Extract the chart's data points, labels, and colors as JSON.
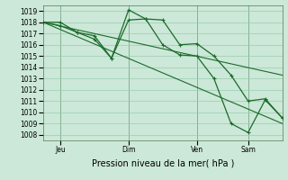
{
  "xlabel": "Pression niveau de la mer( hPa )",
  "bg_color": "#cce8d8",
  "plot_bg_color": "#cce8d8",
  "grid_color": "#99ccb0",
  "line_color": "#1a6b2a",
  "vline_color": "#557755",
  "ylim": [
    1007.5,
    1019.5
  ],
  "yticks": [
    1008,
    1009,
    1010,
    1011,
    1012,
    1013,
    1014,
    1015,
    1016,
    1017,
    1018,
    1019
  ],
  "xtick_labels": [
    "Jeu",
    "Dim",
    "Ven",
    "Sam"
  ],
  "xtick_positions": [
    6,
    30,
    54,
    72
  ],
  "x_vlines": [
    6,
    30,
    54,
    72
  ],
  "xlim": [
    0,
    84
  ],
  "series1_x": [
    0,
    6,
    12,
    18,
    24,
    30,
    36,
    42,
    48,
    54,
    60,
    66,
    72,
    78,
    84
  ],
  "series1_y": [
    1018.0,
    1018.0,
    1017.1,
    1016.8,
    1014.8,
    1019.1,
    1018.3,
    1018.2,
    1016.0,
    1016.1,
    1015.0,
    1013.3,
    1011.0,
    1011.2,
    1009.5
  ],
  "series2_x": [
    0,
    6,
    12,
    18,
    24,
    30,
    36,
    42,
    48,
    54,
    60,
    66,
    72,
    78,
    84
  ],
  "series2_y": [
    1018.0,
    1017.7,
    1017.1,
    1016.5,
    1014.8,
    1018.2,
    1018.3,
    1016.0,
    1015.1,
    1015.0,
    1013.0,
    1009.0,
    1008.2,
    1011.1,
    1009.5
  ],
  "trend1_x": [
    0,
    84
  ],
  "trend1_y": [
    1018.0,
    1013.3
  ],
  "trend2_x": [
    0,
    84
  ],
  "trend2_y": [
    1018.0,
    1009.0
  ],
  "marker_size": 3,
  "ylabel_fontsize": 5.5,
  "xlabel_fontsize": 7,
  "tick_fontsize": 5.5
}
